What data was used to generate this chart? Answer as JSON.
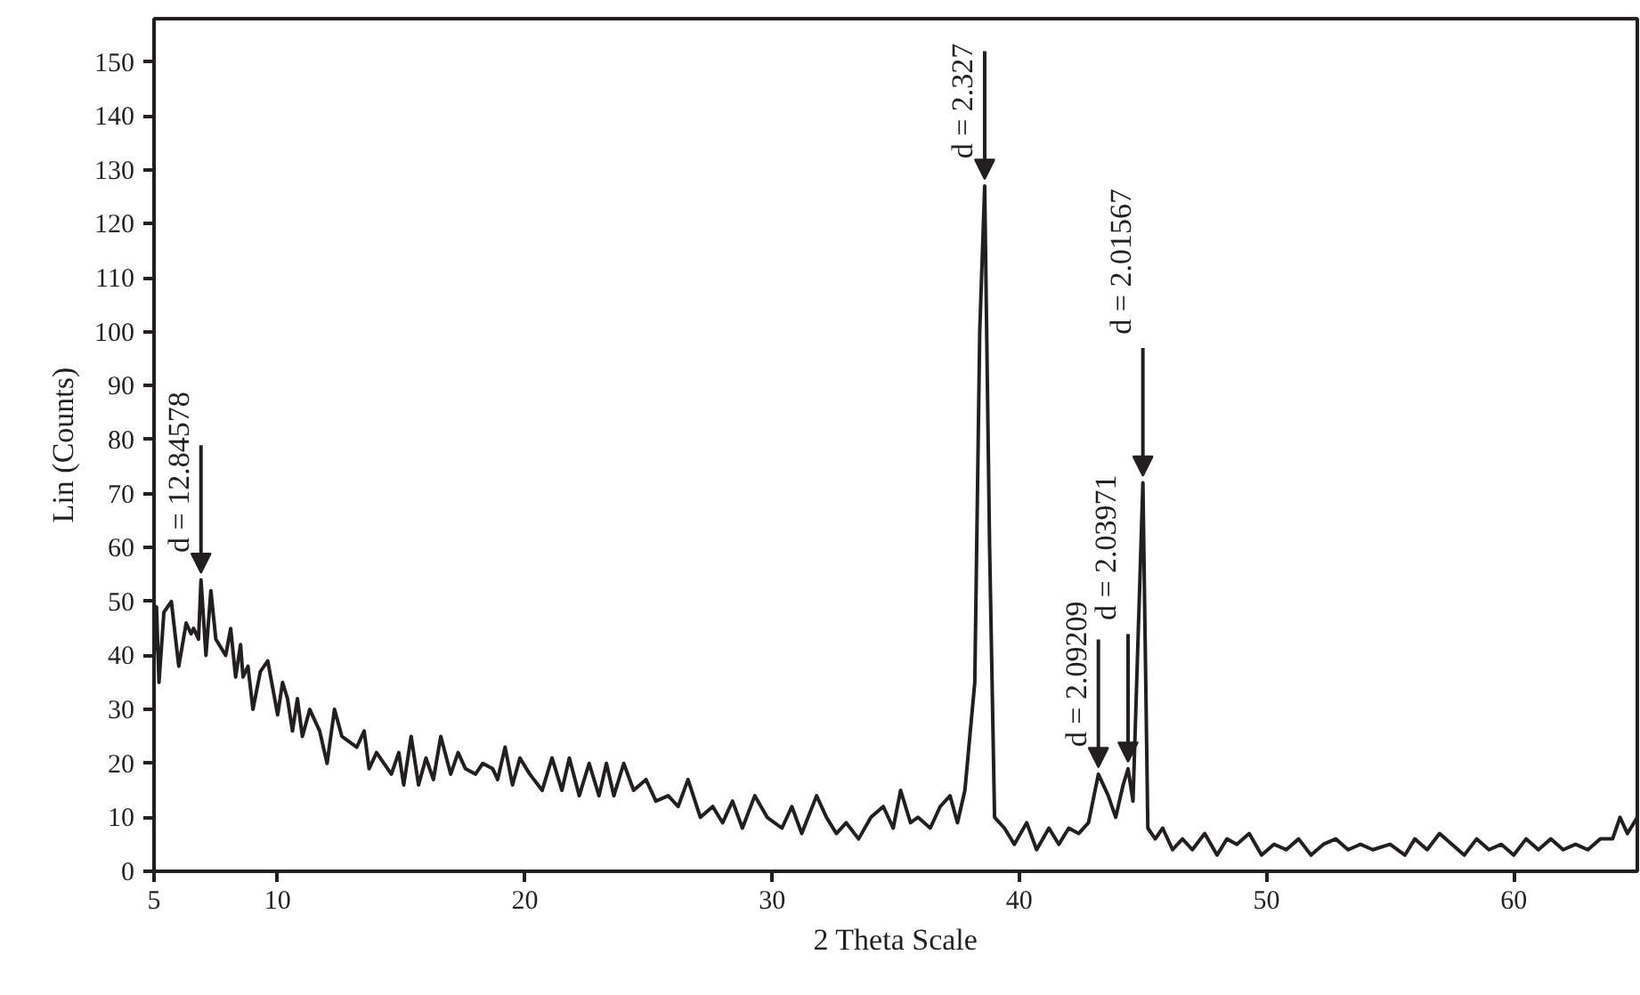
{
  "chart_data": {
    "type": "line",
    "xlabel": "2 Theta Scale",
    "ylabel": "Lin (Counts)",
    "xlim": [
      5,
      65
    ],
    "ylim": [
      0,
      158
    ],
    "xticks": [
      5,
      10,
      20,
      30,
      40,
      50,
      60
    ],
    "yticks": [
      0,
      10,
      20,
      30,
      40,
      50,
      60,
      70,
      80,
      90,
      100,
      110,
      120,
      130,
      140,
      150
    ],
    "grid": false,
    "marker": "none",
    "line_style": "solid",
    "series": [
      {
        "color": "#231f20",
        "x": [
          5.0,
          5.1,
          5.2,
          5.4,
          5.7,
          6.0,
          6.3,
          6.5,
          6.6,
          6.8,
          6.9,
          7.1,
          7.3,
          7.5,
          7.9,
          8.1,
          8.3,
          8.5,
          8.6,
          8.8,
          9.0,
          9.3,
          9.6,
          10.0,
          10.2,
          10.4,
          10.6,
          10.8,
          11.0,
          11.3,
          11.7,
          12.0,
          12.3,
          12.6,
          13.2,
          13.5,
          13.7,
          14.0,
          14.6,
          14.9,
          15.1,
          15.4,
          15.7,
          16.0,
          16.3,
          16.6,
          17.0,
          17.3,
          17.6,
          18.0,
          18.3,
          18.7,
          18.9,
          19.2,
          19.5,
          19.8,
          20.2,
          20.7,
          21.1,
          21.5,
          21.8,
          22.2,
          22.6,
          23.0,
          23.3,
          23.6,
          24.0,
          24.4,
          24.9,
          25.3,
          25.8,
          26.2,
          26.6,
          27.1,
          27.6,
          28.0,
          28.4,
          28.8,
          29.3,
          29.8,
          30.4,
          30.8,
          31.2,
          31.8,
          32.2,
          32.6,
          33.0,
          33.5,
          34.0,
          34.5,
          34.9,
          35.2,
          35.6,
          35.9,
          36.4,
          36.8,
          37.2,
          37.5,
          37.8,
          38.2,
          38.4,
          38.6,
          38.8,
          39.0,
          39.4,
          39.8,
          40.3,
          40.7,
          41.2,
          41.6,
          42.0,
          42.4,
          42.8,
          43.2,
          43.6,
          43.9,
          44.2,
          44.4,
          44.6,
          45.0,
          45.2,
          45.5,
          45.8,
          46.2,
          46.6,
          47.0,
          47.5,
          48.0,
          48.4,
          48.8,
          49.3,
          49.8,
          50.3,
          50.8,
          51.3,
          51.8,
          52.3,
          52.8,
          53.3,
          53.8,
          54.3,
          55.0,
          55.6,
          56.0,
          56.5,
          57.0,
          57.5,
          58.0,
          58.5,
          59.0,
          59.5,
          60.0,
          60.5,
          61.0,
          61.5,
          62.0,
          62.5,
          63.0,
          63.5,
          64.0,
          64.3,
          64.6,
          65.0
        ],
        "values": [
          40,
          49,
          35,
          48,
          50,
          38,
          46,
          44,
          45,
          43,
          54,
          40,
          52,
          43,
          40,
          45,
          36,
          42,
          36,
          38,
          30,
          37,
          39,
          29,
          35,
          32,
          26,
          32,
          25,
          30,
          26,
          20,
          30,
          25,
          23,
          26,
          19,
          22,
          18,
          22,
          16,
          25,
          16,
          21,
          17,
          25,
          18,
          22,
          19,
          18,
          20,
          19,
          17,
          23,
          16,
          21,
          18,
          15,
          21,
          15,
          21,
          14,
          20,
          14,
          20,
          14,
          20,
          15,
          17,
          13,
          14,
          12,
          17,
          10,
          12,
          9,
          13,
          8,
          14,
          10,
          8,
          12,
          7,
          14,
          10,
          7,
          9,
          6,
          10,
          12,
          8,
          15,
          9,
          10,
          8,
          12,
          14,
          9,
          15,
          35,
          100,
          127,
          60,
          10,
          8,
          5,
          9,
          4,
          8,
          5,
          8,
          7,
          9,
          18,
          14,
          10,
          16,
          19,
          13,
          72,
          8,
          6,
          8,
          4,
          6,
          4,
          7,
          3,
          6,
          5,
          7,
          3,
          5,
          4,
          6,
          3,
          5,
          6,
          4,
          5,
          4,
          5,
          3,
          6,
          4,
          7,
          5,
          3,
          6,
          4,
          5,
          3,
          6,
          4,
          6,
          4,
          5,
          4,
          6,
          6,
          10,
          7,
          10
        ]
      }
    ],
    "annotations": [
      {
        "text": "d = 12.84578",
        "x": 6.9,
        "y": 54
      },
      {
        "text": "d = 2.327",
        "x": 38.6,
        "y": 127
      },
      {
        "text": "d = 2.09209",
        "x": 43.2,
        "y": 18
      },
      {
        "text": "d = 2.03971",
        "x": 44.4,
        "y": 19
      },
      {
        "text": "d = 2.01567",
        "x": 45.0,
        "y": 72
      }
    ]
  }
}
